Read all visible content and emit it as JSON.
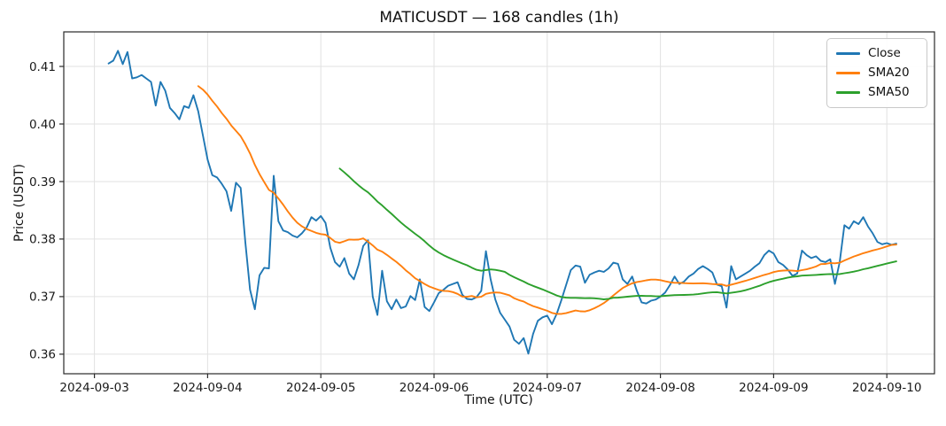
{
  "chart_data": {
    "type": "line",
    "title": "MATICUSDT — 168 candles (1h)",
    "xlabel": "Time (UTC)",
    "ylabel": "Price (USDT)",
    "symbol": "MATICUSDT",
    "candle_count": 168,
    "interval": "1h",
    "grid": true,
    "ylim": [
      0.3566,
      0.416
    ],
    "yticks": [
      0.36,
      0.37,
      0.38,
      0.39,
      0.4,
      0.41
    ],
    "xlim_index": [
      -9.5,
      175.1
    ],
    "xticks": [
      {
        "index": -3,
        "label": "2024-09-03"
      },
      {
        "index": 21,
        "label": "2024-09-04"
      },
      {
        "index": 45,
        "label": "2024-09-05"
      },
      {
        "index": 69,
        "label": "2024-09-06"
      },
      {
        "index": 93,
        "label": "2024-09-07"
      },
      {
        "index": 117,
        "label": "2024-09-08"
      },
      {
        "index": 141,
        "label": "2024-09-09"
      },
      {
        "index": 165,
        "label": "2024-09-10"
      }
    ],
    "legend": {
      "position": "upper right",
      "entries": [
        "Close",
        "SMA20",
        "SMA50"
      ]
    },
    "series": [
      {
        "name": "Close",
        "color": "#1f77b4",
        "values": [
          0.4105,
          0.411,
          0.4127,
          0.4104,
          0.4125,
          0.4079,
          0.4081,
          0.4085,
          0.4079,
          0.4073,
          0.4032,
          0.4073,
          0.4058,
          0.4028,
          0.4019,
          0.4008,
          0.4031,
          0.4028,
          0.405,
          0.4022,
          0.398,
          0.3938,
          0.3911,
          0.3907,
          0.3896,
          0.3883,
          0.3849,
          0.3898,
          0.3889,
          0.3794,
          0.3712,
          0.3678,
          0.3737,
          0.375,
          0.3749,
          0.391,
          0.3831,
          0.3815,
          0.3812,
          0.3806,
          0.3803,
          0.381,
          0.382,
          0.3838,
          0.3832,
          0.384,
          0.3828,
          0.3785,
          0.376,
          0.3752,
          0.3767,
          0.374,
          0.373,
          0.3755,
          0.3788,
          0.3798,
          0.37,
          0.3668,
          0.3745,
          0.3692,
          0.3678,
          0.3695,
          0.368,
          0.3683,
          0.3701,
          0.3694,
          0.373,
          0.3682,
          0.3675,
          0.369,
          0.3706,
          0.3712,
          0.3719,
          0.3722,
          0.3725,
          0.3703,
          0.3696,
          0.3695,
          0.3699,
          0.371,
          0.3779,
          0.373,
          0.3695,
          0.3672,
          0.366,
          0.3648,
          0.3625,
          0.3618,
          0.3628,
          0.3601,
          0.3635,
          0.3658,
          0.3664,
          0.3667,
          0.3652,
          0.367,
          0.3694,
          0.372,
          0.3746,
          0.3754,
          0.3752,
          0.3724,
          0.3738,
          0.3742,
          0.3745,
          0.3743,
          0.3749,
          0.3759,
          0.3757,
          0.373,
          0.3722,
          0.3735,
          0.371,
          0.369,
          0.3688,
          0.3693,
          0.3695,
          0.37,
          0.3707,
          0.372,
          0.3735,
          0.3722,
          0.3726,
          0.3735,
          0.374,
          0.3748,
          0.3753,
          0.3748,
          0.3742,
          0.3721,
          0.3718,
          0.3681,
          0.3753,
          0.373,
          0.3735,
          0.374,
          0.3745,
          0.3752,
          0.3758,
          0.3772,
          0.378,
          0.3775,
          0.376,
          0.3755,
          0.3747,
          0.3736,
          0.374,
          0.378,
          0.3772,
          0.3767,
          0.377,
          0.3762,
          0.376,
          0.3765,
          0.3722,
          0.376,
          0.3824,
          0.3818,
          0.3831,
          0.3826,
          0.3838,
          0.3822,
          0.381,
          0.3795,
          0.3791,
          0.3793,
          0.379,
          0.3792
        ]
      },
      {
        "name": "SMA20",
        "color": "#ff7f0e",
        "derived": {
          "sma_of": "Close",
          "window": 20
        }
      },
      {
        "name": "SMA50",
        "color": "#2ca02c",
        "derived": {
          "sma_of": "Close",
          "window": 50
        }
      }
    ]
  }
}
